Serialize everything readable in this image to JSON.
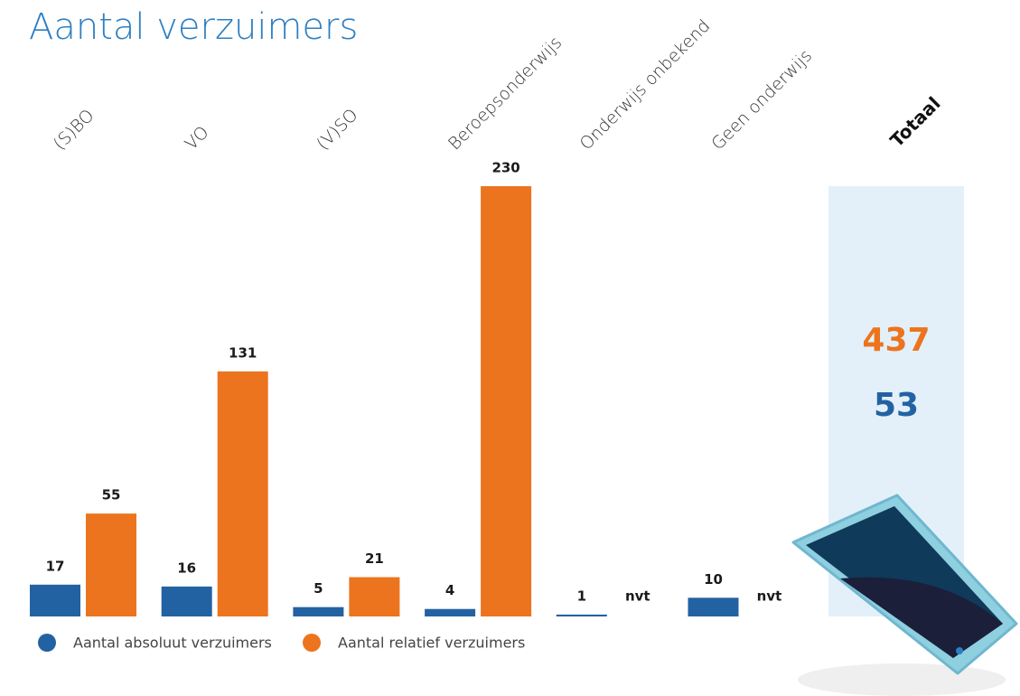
{
  "chart_data": {
    "type": "bar",
    "title": "Aantal verzuimers",
    "categories": [
      "(S)BO",
      "VO",
      "(V)SO",
      "Beroepsonderwijs",
      "Onderwijs onbekend",
      "Geen onderwijs"
    ],
    "series": [
      {
        "name": "Aantal absoluut verzuimers",
        "color": "#2362a2",
        "values": [
          17,
          16,
          5,
          4,
          1,
          10
        ],
        "total": 53
      },
      {
        "name": "Aantal relatief verzuimers",
        "color": "#ec741e",
        "values": [
          55,
          131,
          21,
          230,
          null,
          null
        ],
        "value_labels": [
          null,
          null,
          null,
          null,
          "nvt",
          "nvt"
        ],
        "total": 437
      }
    ],
    "total_label": "Totaal",
    "ylim": [
      0,
      230
    ]
  }
}
